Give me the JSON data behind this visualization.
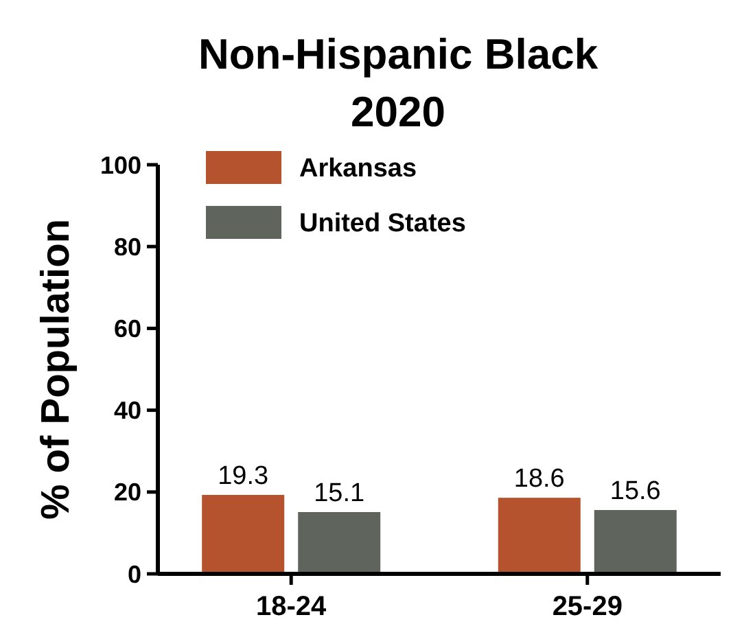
{
  "chart_data": {
    "type": "bar",
    "title": "Non-Hispanic Black\n2020",
    "ylabel": "% of Population",
    "categories": [
      "18-24",
      "25-29"
    ],
    "series": [
      {
        "name": "Arkansas",
        "color": "#b5532e",
        "values": [
          19.3,
          18.6
        ]
      },
      {
        "name": "United States",
        "color": "#5f645d",
        "values": [
          15.1,
          15.6
        ]
      }
    ],
    "ylim": [
      0,
      100
    ],
    "yticks": [
      0,
      20,
      40,
      60,
      80,
      100
    ],
    "data_labels": true,
    "legend": "top left",
    "grid": false
  }
}
